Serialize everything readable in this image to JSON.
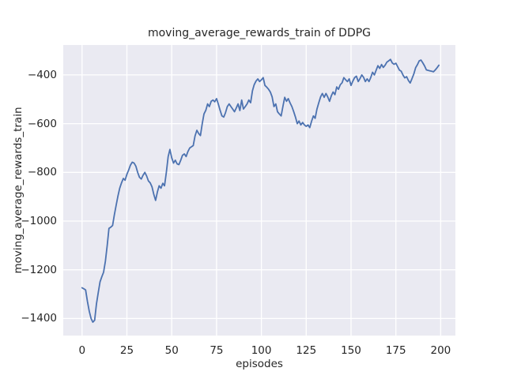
{
  "figure": {
    "title": "moving_average_rewards_train of DDPG",
    "xlabel": "episodes",
    "ylabel": "moving_average_rewards_train"
  },
  "colors": {
    "figure_background": "#ffffff",
    "axes_background": "#eaeaf2",
    "grid": "#ffffff",
    "line": "#4c72b0",
    "text": "#262626"
  },
  "chart_data": {
    "type": "line",
    "title": "moving_average_rewards_train of DDPG",
    "xlabel": "episodes",
    "ylabel": "moving_average_rewards_train",
    "xlim": [
      -10.5,
      208.2
    ],
    "ylim": [
      -1470,
      -277
    ],
    "xticks": [
      0,
      25,
      50,
      75,
      100,
      125,
      150,
      175,
      200
    ],
    "xtick_labels": [
      "0",
      "25",
      "50",
      "75",
      "100",
      "125",
      "150",
      "175",
      "200"
    ],
    "yticks": [
      -1400,
      -1200,
      -1000,
      -800,
      -600,
      -400
    ],
    "ytick_labels": [
      "−1400",
      "−1200",
      "−1000",
      "−800",
      "−600",
      "−400"
    ],
    "grid": true,
    "legend": false,
    "x_start": 0,
    "x_step": 1,
    "series": [
      {
        "name": "moving_average_rewards_train",
        "color": "#4c72b0",
        "values": [
          -1274,
          -1278,
          -1283,
          -1330,
          -1370,
          -1400,
          -1415,
          -1407,
          -1340,
          -1295,
          -1250,
          -1228,
          -1210,
          -1165,
          -1100,
          -1030,
          -1025,
          -1018,
          -975,
          -935,
          -897,
          -865,
          -843,
          -825,
          -832,
          -808,
          -790,
          -770,
          -758,
          -762,
          -775,
          -800,
          -820,
          -827,
          -812,
          -800,
          -815,
          -835,
          -843,
          -860,
          -890,
          -915,
          -880,
          -855,
          -865,
          -845,
          -855,
          -800,
          -735,
          -706,
          -740,
          -762,
          -750,
          -765,
          -768,
          -750,
          -730,
          -724,
          -735,
          -715,
          -700,
          -695,
          -690,
          -650,
          -627,
          -640,
          -649,
          -600,
          -560,
          -545,
          -519,
          -530,
          -508,
          -503,
          -510,
          -497,
          -520,
          -545,
          -568,
          -573,
          -555,
          -530,
          -519,
          -530,
          -540,
          -551,
          -535,
          -519,
          -546,
          -503,
          -540,
          -530,
          -519,
          -503,
          -514,
          -465,
          -440,
          -425,
          -416,
          -427,
          -420,
          -411,
          -443,
          -450,
          -459,
          -470,
          -490,
          -530,
          -519,
          -551,
          -560,
          -568,
          -530,
          -492,
          -508,
          -497,
          -515,
          -530,
          -550,
          -573,
          -600,
          -589,
          -605,
          -595,
          -605,
          -611,
          -605,
          -616,
          -590,
          -568,
          -578,
          -540,
          -514,
          -490,
          -476,
          -492,
          -476,
          -490,
          -508,
          -485,
          -470,
          -481,
          -449,
          -459,
          -440,
          -432,
          -411,
          -420,
          -427,
          -416,
          -443,
          -425,
          -411,
          -405,
          -427,
          -415,
          -400,
          -410,
          -427,
          -416,
          -427,
          -410,
          -389,
          -400,
          -380,
          -362,
          -373,
          -357,
          -369,
          -360,
          -347,
          -342,
          -336,
          -351,
          -356,
          -352,
          -366,
          -380,
          -385,
          -401,
          -412,
          -407,
          -423,
          -433,
          -415,
          -396,
          -370,
          -358,
          -342,
          -339,
          -350,
          -363,
          -379,
          -381,
          -383,
          -385,
          -387,
          -379,
          -370,
          -360
        ]
      }
    ]
  }
}
